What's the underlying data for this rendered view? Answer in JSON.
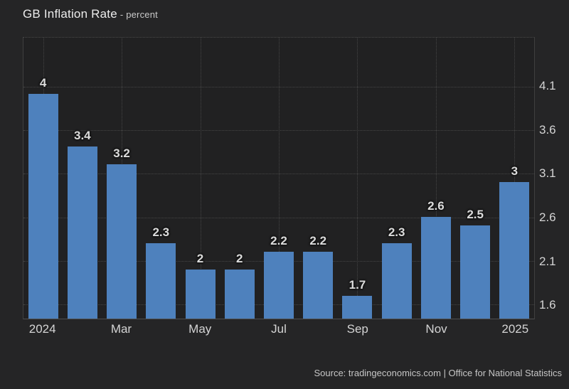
{
  "header": {
    "title": "GB Inflation Rate",
    "subtitle": "- percent"
  },
  "source": {
    "text": "Source: tradingeconomics.com | Office for National Statistics"
  },
  "colors": {
    "background": "#252526",
    "plot_background": "#212122",
    "bar": "#4e81bd",
    "gridline": "#454545",
    "axis_border": "#3f3f3f",
    "tick_label": "#d4d4d4",
    "data_label": "#dcdcdc",
    "title_text": "#ececec",
    "source_text": "#c6c6c6"
  },
  "chart_data": {
    "type": "bar",
    "title": "GB Inflation Rate",
    "unit": "percent",
    "bars": [
      {
        "label": "4",
        "value": 4
      },
      {
        "label": "3.4",
        "value": 3.4
      },
      {
        "label": "3.2",
        "value": 3.2
      },
      {
        "label": "2.3",
        "value": 2.3
      },
      {
        "label": "2",
        "value": 2
      },
      {
        "label": "2",
        "value": 2
      },
      {
        "label": "2.2",
        "value": 2.2
      },
      {
        "label": "2.2",
        "value": 2.2
      },
      {
        "label": "1.7",
        "value": 1.7
      },
      {
        "label": "2.3",
        "value": 2.3
      },
      {
        "label": "2.6",
        "value": 2.6
      },
      {
        "label": "2.5",
        "value": 2.5
      },
      {
        "label": "3",
        "value": 3
      }
    ],
    "x_ticks": [
      {
        "bar_index": 0,
        "label": "2024"
      },
      {
        "bar_index": 2,
        "label": "Mar"
      },
      {
        "bar_index": 4,
        "label": "May"
      },
      {
        "bar_index": 6,
        "label": "Jul"
      },
      {
        "bar_index": 8,
        "label": "Sep"
      },
      {
        "bar_index": 10,
        "label": "Nov"
      },
      {
        "bar_index": 12,
        "label": "2025"
      }
    ],
    "y_ticks": [
      4.1,
      3.6,
      3.1,
      2.6,
      2.1,
      1.6
    ],
    "y_axis_side": "right",
    "ylim": [
      1.44,
      4.66
    ],
    "grid": "dotted",
    "legend": "none",
    "bar_color": "#4e81bd"
  }
}
